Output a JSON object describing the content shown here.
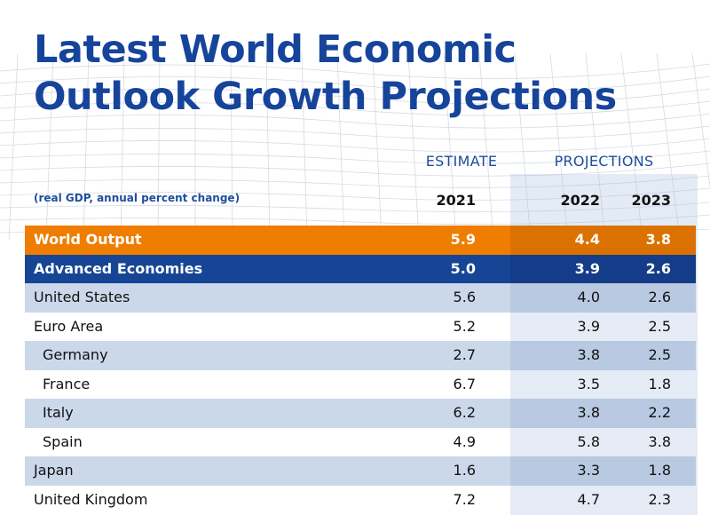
{
  "title": {
    "line1": "Latest World Economic",
    "line2": "Outlook Growth Projections"
  },
  "headers": {
    "estimate": "ESTIMATE",
    "projections": "PROJECTIONS",
    "note": "(real GDP, annual percent change)",
    "years": [
      "2021",
      "2022",
      "2023"
    ]
  },
  "colors": {
    "title": "#17449b",
    "world_output_row": "#ef7d00",
    "advanced_economies_row": "#174596",
    "alt_row": "#cbd8ea"
  },
  "chart_data": {
    "type": "table",
    "title": "Latest World Economic Outlook Growth Projections",
    "subtitle": "(real GDP, annual percent change)",
    "columns": [
      "2021",
      "2022",
      "2023"
    ],
    "column_groups": [
      {
        "label": "ESTIMATE",
        "columns": [
          "2021"
        ]
      },
      {
        "label": "PROJECTIONS",
        "columns": [
          "2022",
          "2023"
        ]
      }
    ],
    "rows": [
      {
        "label": "World Output",
        "values": [
          "5.9",
          "4.4",
          "3.8"
        ]
      },
      {
        "label": "Advanced Economies",
        "values": [
          "5.0",
          "3.9",
          "2.6"
        ]
      },
      {
        "label": "United States",
        "values": [
          "5.6",
          "4.0",
          "2.6"
        ]
      },
      {
        "label": "Euro Area",
        "values": [
          "5.2",
          "3.9",
          "2.5"
        ]
      },
      {
        "label": "Germany",
        "values": [
          "2.7",
          "3.8",
          "2.5"
        ]
      },
      {
        "label": "France",
        "values": [
          "6.7",
          "3.5",
          "1.8"
        ]
      },
      {
        "label": "Italy",
        "values": [
          "6.2",
          "3.8",
          "2.2"
        ]
      },
      {
        "label": "Spain",
        "values": [
          "4.9",
          "5.8",
          "3.8"
        ]
      },
      {
        "label": "Japan",
        "values": [
          "1.6",
          "3.3",
          "1.8"
        ]
      },
      {
        "label": "United Kingdom",
        "values": [
          "7.2",
          "4.7",
          "2.3"
        ]
      }
    ]
  }
}
